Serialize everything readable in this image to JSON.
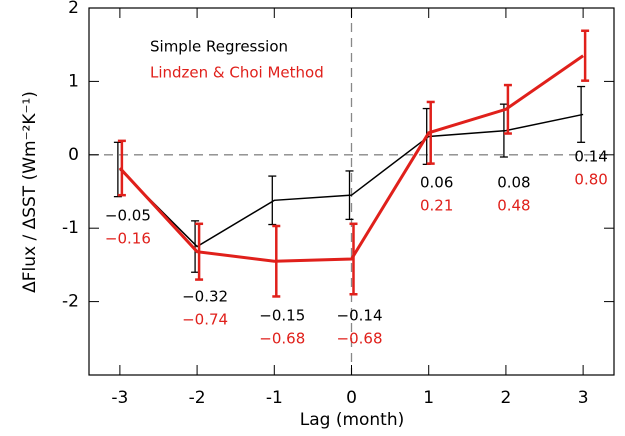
{
  "chart_data": {
    "type": "line",
    "x_label": "Lag (month)",
    "y_label": "ΔFlux / ΔSST (Wm⁻²K⁻¹)",
    "x": [
      -3,
      -2,
      -1,
      0,
      1,
      2,
      3
    ],
    "xlim": [
      -3.4,
      3.4
    ],
    "xticks": [
      -3,
      -2,
      -1,
      0,
      1,
      2,
      3
    ],
    "ylim": [
      -3,
      2
    ],
    "yticks": [
      -2,
      -1,
      0,
      1,
      2
    ],
    "series": [
      {
        "name": "Simple Regression",
        "color": "#000000",
        "width": 1.5,
        "values": [
          -0.2,
          -1.25,
          -0.62,
          -0.55,
          0.25,
          0.33,
          0.55
        ],
        "errors": [
          0.37,
          0.35,
          0.33,
          0.33,
          0.38,
          0.36,
          0.38
        ],
        "annotations": [
          "−0.05",
          "−0.32",
          "−0.15",
          "−0.14",
          "0.06",
          "0.08",
          "0.14"
        ]
      },
      {
        "name": "Lindzen & Choi Method",
        "color": "#e0201b",
        "width": 3,
        "values": [
          -0.18,
          -1.32,
          -1.45,
          -1.42,
          0.3,
          0.62,
          1.35
        ],
        "errors": [
          0.37,
          0.38,
          0.48,
          0.48,
          0.42,
          0.33,
          0.34
        ],
        "annotations": [
          "−0.16",
          "−0.74",
          "−0.68",
          "−0.68",
          "0.21",
          "0.48",
          "0.80"
        ]
      }
    ]
  }
}
